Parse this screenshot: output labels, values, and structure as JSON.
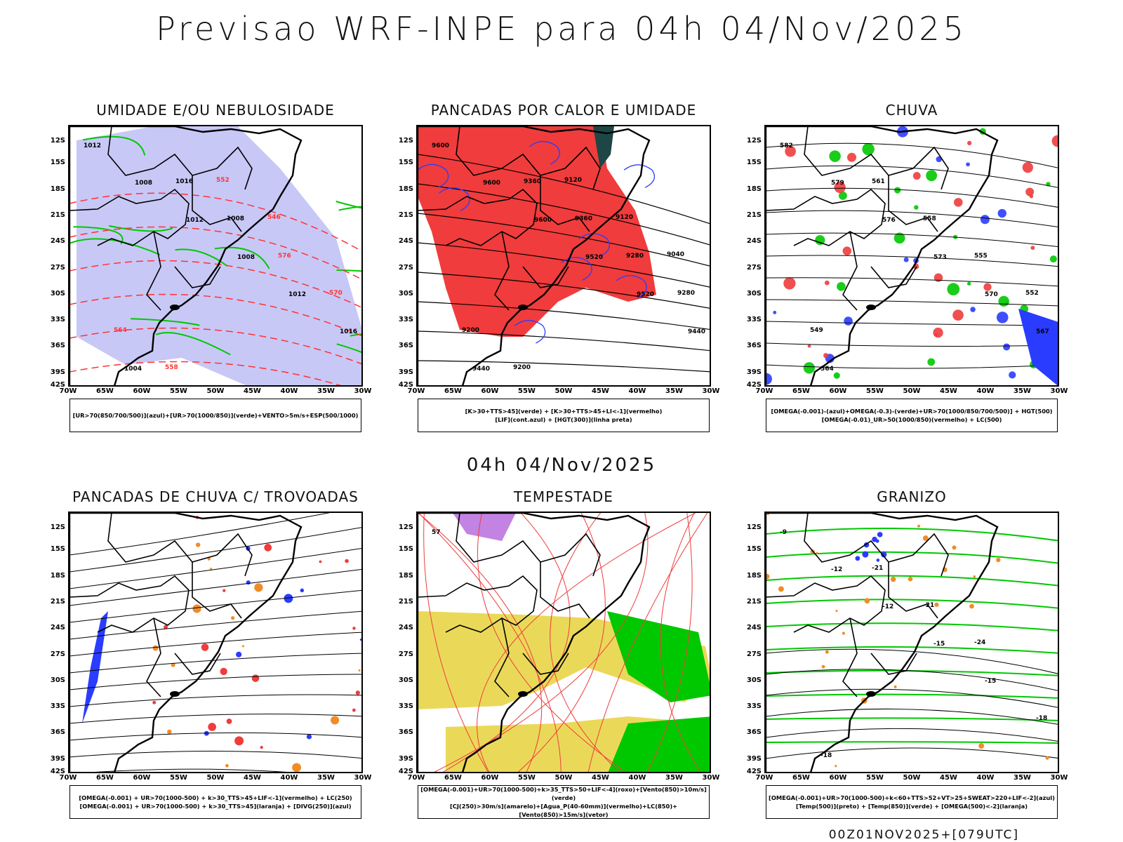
{
  "header": {
    "title": "Previsao WRF-INPE  para 04h 04/Nov/2025"
  },
  "mid_date": "04h 04/Nov/2025",
  "footer": "00Z01NOV2025+[079UTC]",
  "axes": {
    "lat_labels": [
      "12S",
      "15S",
      "18S",
      "21S",
      "24S",
      "27S",
      "30S",
      "33S",
      "36S",
      "39S",
      "42S"
    ],
    "lon_labels": [
      "70W",
      "65W",
      "60W",
      "55W",
      "50W",
      "45W",
      "40W",
      "35W",
      "30W"
    ]
  },
  "panels": [
    {
      "id": "umidade",
      "title": "UMIDADE E/OU NEBULOSIDADE",
      "legend": [
        "[UR>70(850/700/500)](azul)+[UR>70(1000/850)](verde)+VENTO>5m/s+ESP(500/1000)"
      ],
      "contour_labels": [
        "1012",
        "1008",
        "1012",
        "1008",
        "1012",
        "1016",
        "1004",
        "1016",
        "1008",
        "576",
        "570",
        "564",
        "558",
        "552",
        "546"
      ],
      "colors": [
        "#9b9bf0",
        "#00c800",
        "#ff3333",
        "#000000"
      ]
    },
    {
      "id": "pancadas-calor",
      "title": "PANCADAS POR CALOR E UMIDADE",
      "legend": [
        "[K>30+TTS>45](verde) + [K>30+TTS>45+LI<-1](vermelho)",
        "[LIF](cont.azul) + [HGT(300)](linha preta)"
      ],
      "contour_labels": [
        "9600",
        "9600",
        "9600",
        "9520",
        "9520",
        "9440",
        "9440",
        "9360",
        "9360",
        "9280",
        "9280",
        "9200",
        "9200",
        "9120",
        "9120",
        "9040"
      ],
      "colors": [
        "#f03c3c",
        "#1e4646",
        "#2a3cff",
        "#000000"
      ]
    },
    {
      "id": "chuva",
      "title": "CHUVA",
      "legend": [
        "[OMEGA(-0.001)-(azul)+OMEGA(-0.3)-(verde)+UR>70(1000/850/700/500)] + HGT(500)",
        "[OMEGA(-0.01)_UR>50(1000/850)(vermelho) + LC(500)"
      ],
      "contour_labels": [
        "582",
        "579",
        "576",
        "573",
        "570",
        "567",
        "564",
        "561",
        "558",
        "555",
        "552",
        "549"
      ],
      "colors": [
        "#2a3cff",
        "#00c800",
        "#f03c3c",
        "#000000"
      ]
    },
    {
      "id": "pancadas-trovoadas",
      "title": "PANCADAS DE CHUVA C/ TROVOADAS",
      "legend": [
        "[OMEGA(-0.001) + UR>70(1000-500) + k>30_TTS>45+LIF<-1](vermelho) + LC(250)",
        "[OMEGA(-0.001) + UR>70(1000-500) + k>30_TTS>45](laranja) + [DIVG(250)](azul)"
      ],
      "contour_labels": [],
      "colors": [
        "#f03c3c",
        "#f08c28",
        "#2a3cff",
        "#000000"
      ]
    },
    {
      "id": "tempestade",
      "title": "TEMPESTADE",
      "legend": [
        "[OMEGA(-0.001)+UR>70(1000-500)+k>35_TTS>50+LIF<-4](roxo)+[Vento(850)>10m/s](verde)",
        "[CJ(250)>30m/s](amarelo)+[Agua_P(40-60mm)](vermelho)+LC(850)+[Vento(850)>15m/s](vetor)"
      ],
      "contour_labels": [
        "57"
      ],
      "colors": [
        "#9b30d0",
        "#00c800",
        "#e6d23c",
        "#f03c3c"
      ]
    },
    {
      "id": "granizo",
      "title": "GRANIZO",
      "legend": [
        "[OMEGA(-0.001)+UR>70(1000-500)+k<60+TTS>52+VT>25+SWEAT>220+LIF<-2](azul)",
        "[Temp(500)](preto) + [Temp(850)](verde) + [OMEGA(500)<-2](laranja)"
      ],
      "contour_labels": [
        "-9",
        "-12",
        "-12",
        "-15",
        "-15",
        "-18",
        "-18",
        "-21",
        "-21",
        "-24"
      ],
      "colors": [
        "#2a3cff",
        "#00c800",
        "#f08c28",
        "#000000"
      ]
    }
  ]
}
